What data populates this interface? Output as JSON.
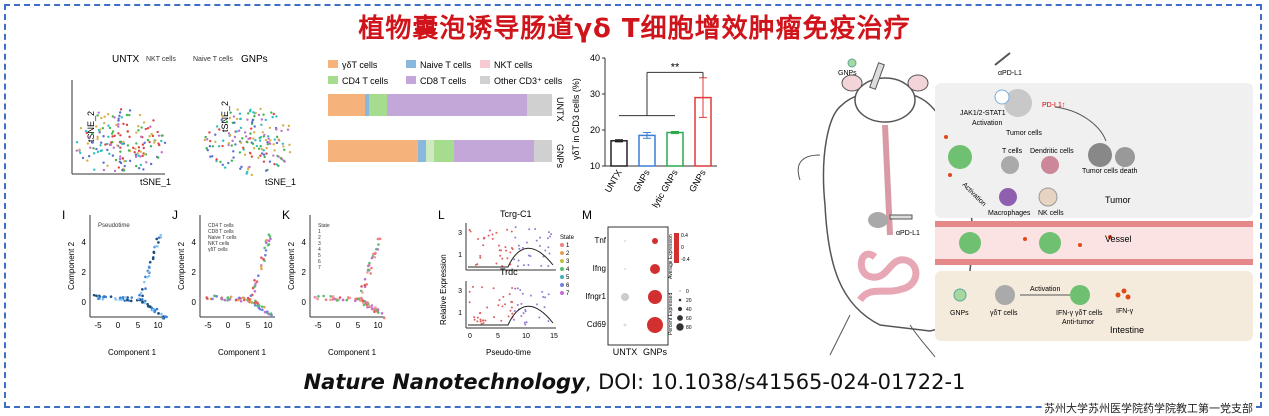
{
  "title": "植物囊泡诱导肠道γδ T细胞增效肿瘤免疫治疗",
  "citation": {
    "journal": "Nature Nanotechnology",
    "doi_text": ", DOI: 10.1038/s41565-024-01722-1"
  },
  "footer": "苏州大学苏州医学院药学院教工第一党支部",
  "tsne": {
    "untx_label": "UNTX",
    "gnps_label": "GNPs",
    "legend": [
      "NKT cells",
      "Naive T cells"
    ],
    "xlabel": "tSNE_1",
    "ylabel": "tSNE_2"
  },
  "stacked_bar": {
    "legend": [
      "γδT cells",
      "Naive T cells",
      "NKT cells",
      "CD4 T cells",
      "CD8 T cells",
      "Other CD3⁺ cells"
    ],
    "row_labels": [
      "UNTX",
      "GNPs"
    ]
  },
  "chart_data": {
    "type": "bar",
    "title": "",
    "categories": [
      "UNTX",
      "GNPs",
      "lytic GNPs",
      "GNPs"
    ],
    "values": [
      17,
      18.5,
      19.3,
      29
    ],
    "errors": [
      0.3,
      0.8,
      0.3,
      5.5
    ],
    "ylabel": "γδT in CD3 cells (%)",
    "ylim": [
      10,
      40
    ],
    "yticks": [
      10,
      20,
      30,
      40
    ],
    "significance": "**",
    "colors": [
      "#222222",
      "#3a7fd5",
      "#2aa84a",
      "#e03a3a"
    ]
  },
  "trajectory": {
    "panels": [
      {
        "letter": "I",
        "legend": [
          "Pseudotime"
        ]
      },
      {
        "letter": "J",
        "legend": [
          "CD4 T cells",
          "CD8 T cells",
          "Naive T cells",
          "NKT cells",
          "γδT cells"
        ]
      },
      {
        "letter": "K",
        "legend": [
          "State",
          "1",
          "2",
          "3",
          "4",
          "5",
          "6",
          "7"
        ]
      }
    ],
    "xlabel": "Component 1",
    "ylabel": "Component 2",
    "xticks": [
      "-5",
      "0",
      "5",
      "10"
    ],
    "yticks": [
      "4",
      "2",
      "0"
    ]
  },
  "expression": {
    "letter": "L",
    "genes": [
      "Tcrg-C1",
      "Trdc"
    ],
    "ylabel": "Relative Expression",
    "xlabel": "Pseudo-time",
    "yticks": [
      "3",
      "1"
    ],
    "xticks": [
      "0",
      "5",
      "10",
      "15"
    ],
    "state_label": "State",
    "states": [
      "1",
      "2",
      "3",
      "4",
      "5",
      "6",
      "7"
    ]
  },
  "dotplot": {
    "letter": "M",
    "genes": [
      "Tnf",
      "Ifng",
      "Ifngr1",
      "Cd69"
    ],
    "groups": [
      "UNTX",
      "GNPs"
    ],
    "legend_title1": "Average Expression",
    "legend_ticks1": [
      "0.4",
      "0",
      "-0.4"
    ],
    "legend_title2": "Percent Expressed",
    "legend_ticks2": [
      "0",
      "20",
      "40",
      "60",
      "80"
    ]
  },
  "schematic": {
    "labels": {
      "gnps_top": "GNPs",
      "apd_l1": "αPD-L1",
      "pdl1": "PD-L1↑",
      "jak": "JAK1/2-STAT1",
      "activation1": "Activation",
      "tumor_cells": "Tumor cells",
      "t_cells": "T cells",
      "dendritic": "Dendritic cells",
      "tumor_death": "Tumor cells death",
      "activation2": "Activation",
      "macrophages": "Macrophages",
      "nk": "NK cells",
      "tumor": "Tumor",
      "apd_l1_mouse": "αPD-L1",
      "vessel": "Vessel",
      "gnps_bottom": "GNPs",
      "gdt": "γδT cells",
      "activation3": "Activation",
      "ifn_gdt": "IFN-γ γδT cells",
      "anti_tumor": "Anti-tumor",
      "ifng": "IFN-γ",
      "intestine": "Intestine"
    }
  }
}
